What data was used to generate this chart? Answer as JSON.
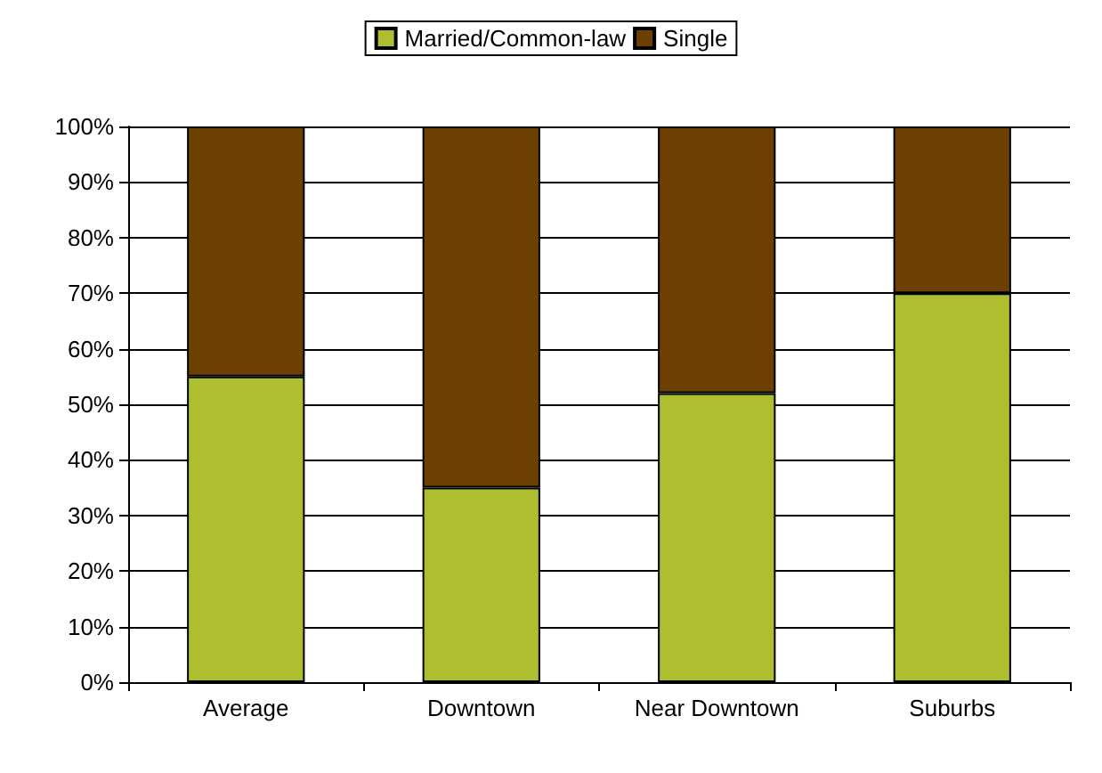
{
  "chart_data": {
    "type": "bar",
    "stacked": true,
    "categories": [
      "Average",
      "Downtown",
      "Near Downtown",
      "Suburbs"
    ],
    "series": [
      {
        "name": "Married/Common-law",
        "color": "#afbd31",
        "values": [
          55,
          35,
          52,
          70
        ]
      },
      {
        "name": "Single",
        "color": "#6b4000",
        "values": [
          45,
          65,
          48,
          30
        ]
      }
    ],
    "ylim": [
      0,
      100
    ],
    "yticks": [
      {
        "value": 0,
        "label": "0%"
      },
      {
        "value": 10,
        "label": "10%"
      },
      {
        "value": 20,
        "label": "20%"
      },
      {
        "value": 30,
        "label": "30%"
      },
      {
        "value": 40,
        "label": "40%"
      },
      {
        "value": 50,
        "label": "50%"
      },
      {
        "value": 60,
        "label": "60%"
      },
      {
        "value": 70,
        "label": "70%"
      },
      {
        "value": 80,
        "label": "80%"
      },
      {
        "value": 90,
        "label": "90%"
      },
      {
        "value": 100,
        "label": "100%"
      }
    ],
    "grid": "y",
    "legend": "top"
  }
}
